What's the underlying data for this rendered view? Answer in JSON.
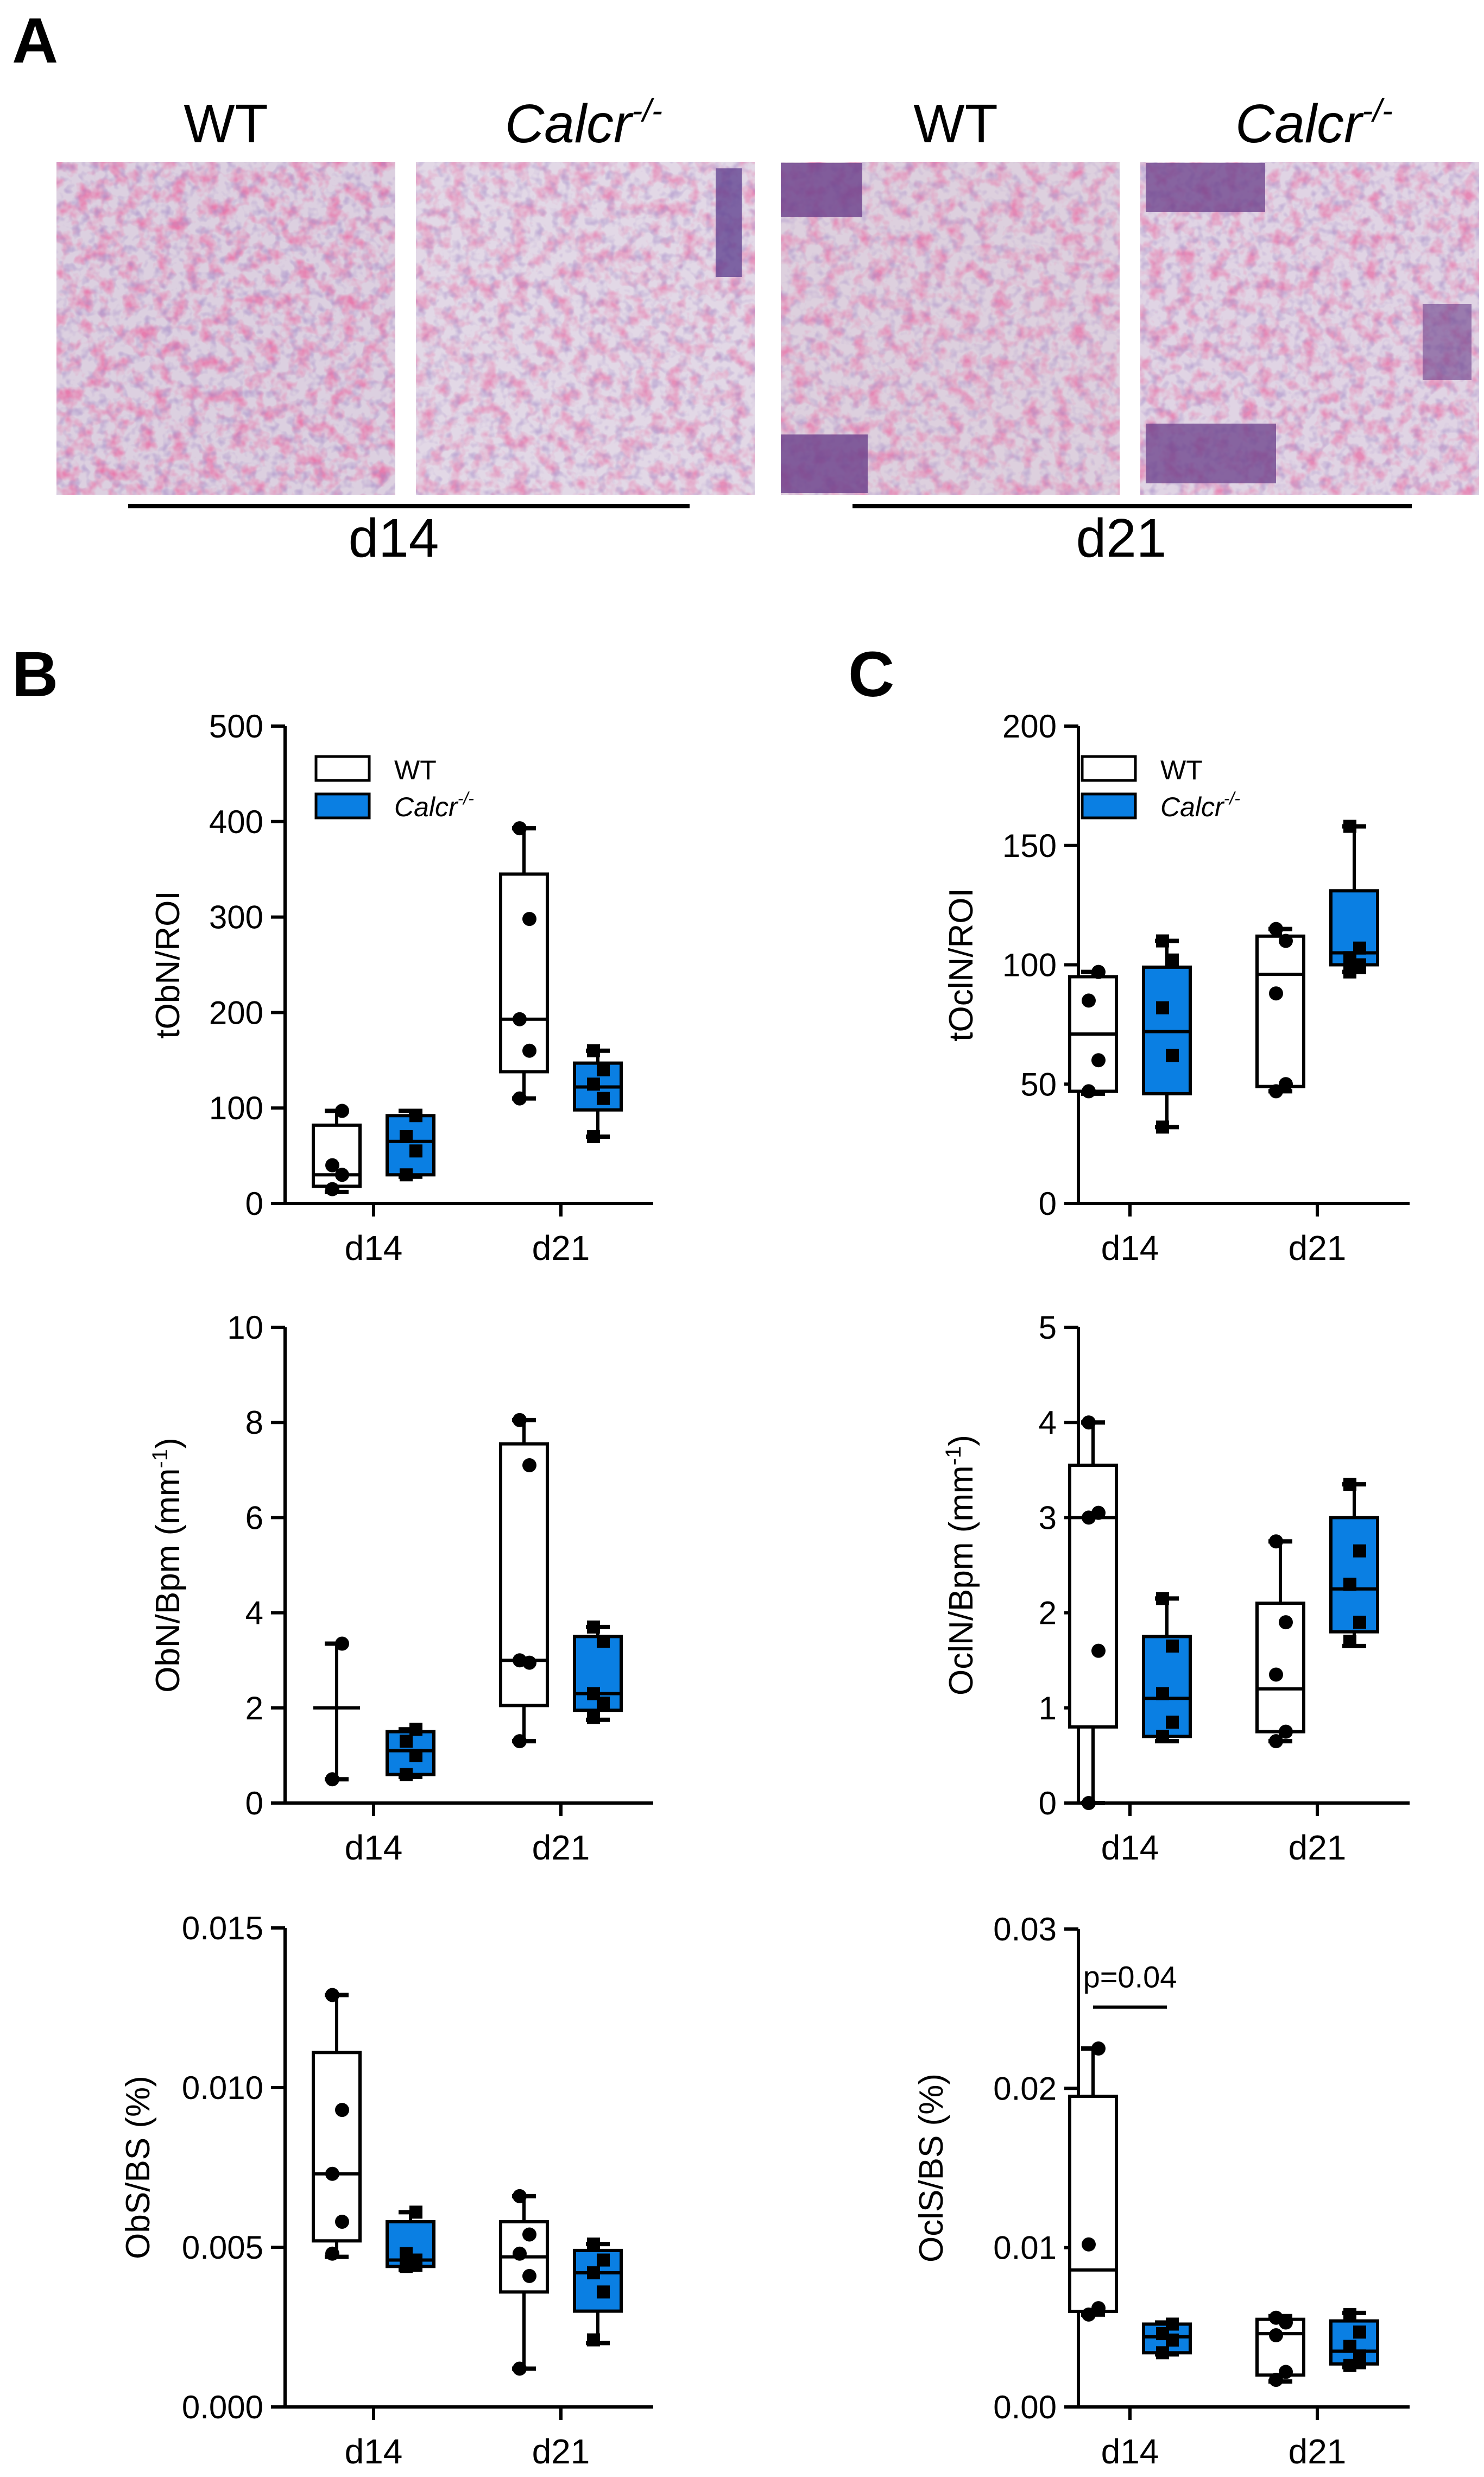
{
  "panel_a": {
    "letter": "A",
    "image_labels": [
      "WT",
      "Calcr",
      "WT",
      "Calcr"
    ],
    "genotype_superscript": "-/-",
    "groups": [
      "d14",
      "d21"
    ]
  },
  "panel_b": {
    "letter": "B"
  },
  "panel_c": {
    "letter": "C"
  },
  "legend": {
    "wt": "WT",
    "ko": "Calcr",
    "ko_sup": "-/-"
  },
  "colors": {
    "wt_fill": "#ffffff",
    "ko_fill": "#0a7fe3",
    "stain_pink": "#d0356a",
    "stain_purple": "#5b3c8c",
    "tissue": "#dcd0e0"
  },
  "chart_data": [
    {
      "id": "tObN",
      "type": "boxplot",
      "ylabel": "tObN/ROI",
      "ylim": [
        0,
        500
      ],
      "yticks": [
        "0",
        "100",
        "200",
        "300",
        "400",
        "500"
      ],
      "categories": [
        "d14",
        "d21"
      ],
      "series": [
        {
          "name": "WT",
          "boxes": [
            {
              "min": 12,
              "q1": 18,
              "median": 30,
              "q3": 82,
              "max": 97,
              "points": [
                15,
                30,
                40,
                97
              ]
            },
            {
              "min": 110,
              "q1": 138,
              "median": 193,
              "q3": 345,
              "max": 393,
              "points": [
                110,
                160,
                193,
                298,
                393
              ]
            }
          ]
        },
        {
          "name": "Calcr-/-",
          "boxes": [
            {
              "min": 28,
              "q1": 30,
              "median": 65,
              "q3": 92,
              "max": 97,
              "points": [
                30,
                55,
                70,
                92
              ]
            },
            {
              "min": 70,
              "q1": 98,
              "median": 122,
              "q3": 147,
              "max": 160,
              "points": [
                70,
                110,
                125,
                140,
                160
              ]
            }
          ]
        }
      ]
    },
    {
      "id": "tOclN",
      "type": "boxplot",
      "ylabel": "tOclN/ROI",
      "ylim": [
        0,
        200
      ],
      "yticks": [
        "0",
        "50",
        "100",
        "150",
        "200"
      ],
      "categories": [
        "d14",
        "d21"
      ],
      "series": [
        {
          "name": "WT",
          "boxes": [
            {
              "min": 46,
              "q1": 47,
              "median": 71,
              "q3": 95,
              "max": 97,
              "points": [
                47,
                60,
                85,
                97
              ]
            },
            {
              "min": 47,
              "q1": 49,
              "median": 96,
              "q3": 112,
              "max": 115,
              "points": [
                47,
                50,
                88,
                110,
                115
              ]
            }
          ]
        },
        {
          "name": "Calcr-/-",
          "boxes": [
            {
              "min": 32,
              "q1": 46,
              "median": 72,
              "q3": 99,
              "max": 110,
              "points": [
                32,
                62,
                82,
                102,
                110
              ]
            },
            {
              "min": 97,
              "q1": 100,
              "median": 105,
              "q3": 131,
              "max": 158,
              "points": [
                97,
                100,
                103,
                107,
                158
              ]
            }
          ]
        }
      ]
    },
    {
      "id": "ObN_Bpm",
      "type": "boxplot",
      "ylabel": "ObN/Bpm (mm",
      "ylabel_sup": "-1",
      "ylabel_end": ")",
      "ylim": [
        0,
        10
      ],
      "yticks": [
        "0",
        "2",
        "4",
        "6",
        "8",
        "10"
      ],
      "categories": [
        "d14",
        "d21"
      ],
      "series": [
        {
          "name": "WT",
          "boxes": [
            {
              "min": 0.5,
              "q1": 2.0,
              "median": 2.0,
              "q3": 2.0,
              "max": 3.35,
              "points": [
                0.5,
                3.35
              ]
            },
            {
              "min": 1.3,
              "q1": 2.05,
              "median": 3.0,
              "q3": 7.55,
              "max": 8.05,
              "points": [
                1.3,
                2.95,
                3.0,
                7.1,
                8.05
              ]
            }
          ]
        },
        {
          "name": "Calcr-/-",
          "boxes": [
            {
              "min": 0.55,
              "q1": 0.6,
              "median": 1.1,
              "q3": 1.5,
              "max": 1.55,
              "points": [
                0.6,
                1.0,
                1.3,
                1.55
              ]
            },
            {
              "min": 1.75,
              "q1": 1.95,
              "median": 2.3,
              "q3": 3.5,
              "max": 3.7,
              "points": [
                1.8,
                2.1,
                2.3,
                3.4,
                3.7
              ]
            }
          ]
        }
      ]
    },
    {
      "id": "OclN_Bpm",
      "type": "boxplot",
      "ylabel": "OclN/Bpm (mm",
      "ylabel_sup": "-1",
      "ylabel_end": ")",
      "ylim": [
        0,
        5
      ],
      "yticks": [
        "0",
        "1",
        "2",
        "3",
        "4",
        "5"
      ],
      "categories": [
        "d14",
        "d21"
      ],
      "series": [
        {
          "name": "WT",
          "boxes": [
            {
              "min": 0,
              "q1": 0.8,
              "median": 3.0,
              "q3": 3.55,
              "max": 4.0,
              "points": [
                0,
                1.6,
                3.0,
                3.05,
                4.0
              ]
            },
            {
              "min": 0.65,
              "q1": 0.75,
              "median": 1.2,
              "q3": 2.1,
              "max": 2.75,
              "points": [
                0.65,
                0.75,
                1.35,
                1.9,
                2.75
              ]
            }
          ]
        },
        {
          "name": "Calcr-/-",
          "boxes": [
            {
              "min": 0.65,
              "q1": 0.7,
              "median": 1.1,
              "q3": 1.75,
              "max": 2.15,
              "points": [
                0.7,
                0.85,
                1.15,
                1.65,
                2.15
              ]
            },
            {
              "min": 1.65,
              "q1": 1.8,
              "median": 2.25,
              "q3": 3.0,
              "max": 3.35,
              "points": [
                1.7,
                1.9,
                2.3,
                2.65,
                3.35
              ]
            }
          ]
        }
      ]
    },
    {
      "id": "ObS_BS",
      "type": "boxplot",
      "ylabel": "ObS/BS (%)",
      "ylim": [
        0,
        0.015
      ],
      "yticks": [
        "0.000",
        "0.005",
        "0.010",
        "0.015"
      ],
      "categories": [
        "d14",
        "d21"
      ],
      "series": [
        {
          "name": "WT",
          "boxes": [
            {
              "min": 0.0047,
              "q1": 0.0052,
              "median": 0.0073,
              "q3": 0.0111,
              "max": 0.0129,
              "points": [
                0.0048,
                0.0058,
                0.0073,
                0.0093,
                0.0129
              ]
            },
            {
              "min": 0.0012,
              "q1": 0.0036,
              "median": 0.0047,
              "q3": 0.0058,
              "max": 0.0066,
              "points": [
                0.0012,
                0.0041,
                0.0048,
                0.0054,
                0.0066
              ]
            }
          ]
        },
        {
          "name": "Calcr-/-",
          "boxes": [
            {
              "min": 0.0043,
              "q1": 0.0044,
              "median": 0.0046,
              "q3": 0.0058,
              "max": 0.0061,
              "points": [
                0.0044,
                0.0046,
                0.0048,
                0.0061
              ]
            },
            {
              "min": 0.002,
              "q1": 0.003,
              "median": 0.0042,
              "q3": 0.0049,
              "max": 0.0051,
              "points": [
                0.0021,
                0.0036,
                0.0042,
                0.0046,
                0.0051
              ]
            }
          ]
        }
      ]
    },
    {
      "id": "OclS_BS",
      "type": "boxplot",
      "ylabel": "OclS/BS (%)",
      "ylim": [
        0,
        0.03
      ],
      "yticks": [
        "0.00",
        "0.01",
        "0.02",
        "0.03"
      ],
      "categories": [
        "d14",
        "d21"
      ],
      "annotation": {
        "text": "p=0.04"
      },
      "series": [
        {
          "name": "WT",
          "boxes": [
            {
              "min": 0.0058,
              "q1": 0.006,
              "median": 0.0086,
              "q3": 0.0195,
              "max": 0.0225,
              "points": [
                0.0058,
                0.0062,
                0.0102,
                0.0225
              ]
            },
            {
              "min": 0.0016,
              "q1": 0.002,
              "median": 0.0046,
              "q3": 0.0055,
              "max": 0.0057,
              "points": [
                0.0017,
                0.0022,
                0.0045,
                0.0053,
                0.0056
              ]
            }
          ]
        },
        {
          "name": "Calcr-/-",
          "boxes": [
            {
              "min": 0.0033,
              "q1": 0.0034,
              "median": 0.0044,
              "q3": 0.0052,
              "max": 0.0053,
              "points": [
                0.0034,
                0.0042,
                0.0046,
                0.0052
              ]
            },
            {
              "min": 0.0025,
              "q1": 0.0027,
              "median": 0.0035,
              "q3": 0.0054,
              "max": 0.0059,
              "points": [
                0.0026,
                0.0032,
                0.0038,
                0.0047,
                0.0058
              ]
            }
          ]
        }
      ]
    }
  ]
}
